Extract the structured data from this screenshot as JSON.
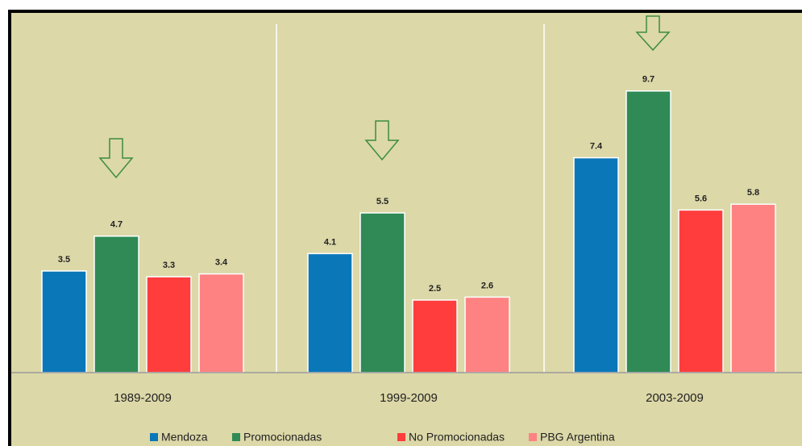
{
  "chart_data": {
    "type": "bar",
    "categories": [
      "1989-2009",
      "1999-2009",
      "2003-2009"
    ],
    "series": [
      {
        "name": "Mendoza",
        "color": "#0a77b8",
        "values": [
          3.5,
          4.1,
          7.4
        ]
      },
      {
        "name": "Promocionadas",
        "color": "#2f8a55",
        "values": [
          4.7,
          5.5,
          9.7
        ]
      },
      {
        "name": "No Promocionadas",
        "color": "#ff3d3d",
        "values": [
          3.3,
          2.5,
          5.6
        ]
      },
      {
        "name": "PBG Argentina",
        "color": "#ff8282",
        "values": [
          3.4,
          2.6,
          5.8
        ]
      }
    ]
  }
}
